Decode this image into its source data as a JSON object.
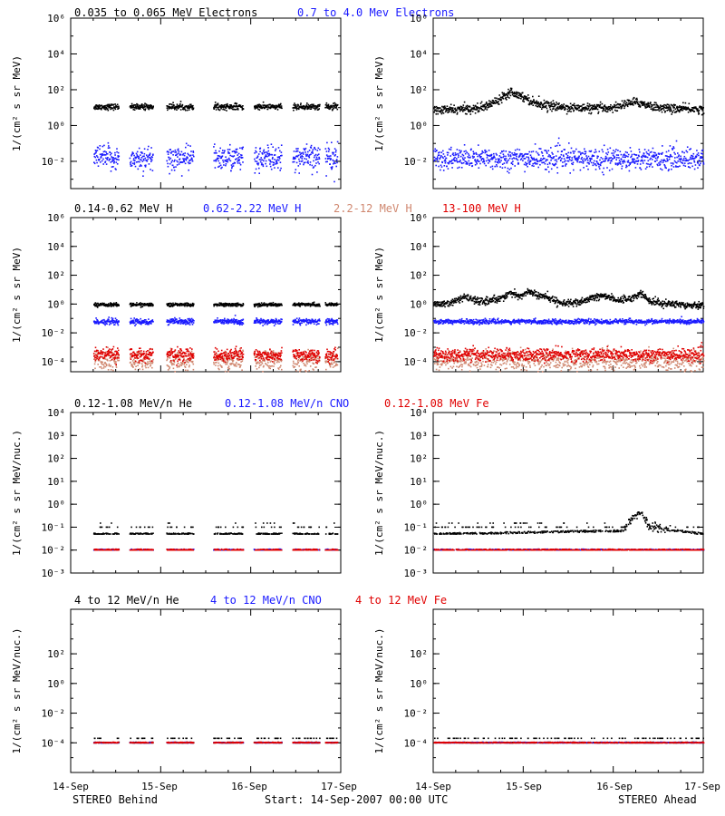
{
  "footer": {
    "left": "STEREO Behind",
    "center": "Start: 14-Sep-2007 00:00 UTC",
    "right": "STEREO Ahead"
  },
  "x_ticks": [
    "14-Sep",
    "15-Sep",
    "16-Sep",
    "17-Sep"
  ],
  "row_titles": [
    [
      {
        "text": "0.035 to 0.065 MeV Electrons",
        "color": "#000000"
      },
      {
        "text": "0.7 to 4.0 Mev Electrons",
        "color": "#1a1aff"
      }
    ],
    [
      {
        "text": "0.14-0.62 MeV H",
        "color": "#000000"
      },
      {
        "text": "0.62-2.22 MeV H",
        "color": "#1a1aff"
      },
      {
        "text": "2.2-12 MeV H",
        "color": "#d08870"
      },
      {
        "text": "13-100 MeV H",
        "color": "#e00000"
      }
    ],
    [
      {
        "text": "0.12-1.08 MeV/n He",
        "color": "#000000"
      },
      {
        "text": "0.12-1.08 MeV/n CNO",
        "color": "#1a1aff"
      },
      {
        "text": "0.12-1.08 MeV Fe",
        "color": "#e00000"
      }
    ],
    [
      {
        "text": "4 to 12 MeV/n He",
        "color": "#000000"
      },
      {
        "text": "4 to 12 MeV/n CNO",
        "color": "#1a1aff"
      },
      {
        "text": "4 to 12 MeV Fe",
        "color": "#e00000"
      }
    ]
  ],
  "chart_data": [
    {
      "type": "scatter",
      "spacecraft": "STEREO Behind",
      "ylabel": "1/(cm² s sr MeV)",
      "y_scale": "log",
      "ylim": [
        0.0003,
        1000000
      ],
      "xlim": [
        "14-Sep",
        "17-Sep"
      ],
      "y_tick_labels": [
        "10⁶",
        "10⁴",
        "10²",
        "10⁰",
        "10⁻²"
      ],
      "y_tick_exponents": [
        6,
        4,
        2,
        0,
        -2
      ],
      "data_gaps": [
        [
          0.0,
          0.25
        ],
        [
          0.53,
          0.65
        ],
        [
          0.91,
          1.06
        ],
        [
          1.36,
          1.58
        ],
        [
          1.91,
          2.03
        ],
        [
          2.34,
          2.46
        ],
        [
          2.76,
          2.82
        ],
        [
          2.96,
          3.0
        ]
      ],
      "series": [
        {
          "name": "0.035 to 0.065 MeV Electrons",
          "color": "#000000",
          "x": [
            0.25,
            2.96
          ],
          "y": [
            11,
            11
          ],
          "scatter_decades": 0.08
        },
        {
          "name": "0.7 to 4.0 Mev Electrons",
          "color": "#1a1aff",
          "x": [
            0.25,
            2.96
          ],
          "y": [
            0.015,
            0.015
          ],
          "scatter_decades": 0.35
        }
      ]
    },
    {
      "type": "scatter",
      "spacecraft": "STEREO Ahead",
      "ylabel": "1/(cm² s sr MeV)",
      "y_scale": "log",
      "ylim": [
        0.0003,
        1000000
      ],
      "xlim": [
        "14-Sep",
        "17-Sep"
      ],
      "y_tick_labels": [
        "10⁶",
        "10⁴",
        "10²",
        "10⁰",
        "10⁻²"
      ],
      "y_tick_exponents": [
        6,
        4,
        2,
        0,
        -2
      ],
      "data_gaps": [],
      "series": [
        {
          "name": "0.035 to 0.065 MeV Electrons",
          "color": "#000000",
          "x": [
            0.0,
            0.3,
            0.55,
            0.7,
            0.85,
            1.0,
            1.1,
            1.3,
            1.5,
            1.8,
            2.0,
            2.2,
            2.3,
            2.45,
            2.6,
            3.0
          ],
          "y": [
            7,
            8,
            10,
            25,
            80,
            40,
            20,
            12,
            10,
            9,
            10,
            20,
            18,
            11,
            9,
            8
          ],
          "scatter_decades": 0.12
        },
        {
          "name": "0.7 to 4.0 Mev Electrons",
          "color": "#1a1aff",
          "x": [
            0.0,
            3.0
          ],
          "y": [
            0.014,
            0.014
          ],
          "scatter_decades": 0.3
        }
      ]
    },
    {
      "type": "scatter",
      "spacecraft": "STEREO Behind",
      "ylabel": "1/(cm² s sr MeV)",
      "y_scale": "log",
      "ylim": [
        2e-05,
        1000000
      ],
      "xlim": [
        "14-Sep",
        "17-Sep"
      ],
      "y_tick_labels": [
        "10⁶",
        "10⁴",
        "10²",
        "10⁰",
        "10⁻²",
        "10⁻⁴"
      ],
      "y_tick_exponents": [
        6,
        4,
        2,
        0,
        -2,
        -4
      ],
      "data_gaps": [
        [
          0.0,
          0.25
        ],
        [
          0.53,
          0.65
        ],
        [
          0.91,
          1.06
        ],
        [
          1.36,
          1.58
        ],
        [
          1.91,
          2.03
        ],
        [
          2.34,
          2.46
        ],
        [
          2.76,
          2.82
        ],
        [
          2.96,
          3.0
        ]
      ],
      "series": [
        {
          "name": "0.14-0.62 MeV H",
          "color": "#000000",
          "x": [
            0.25,
            2.96
          ],
          "y": [
            0.9,
            0.9
          ],
          "scatter_decades": 0.06
        },
        {
          "name": "0.62-2.22 MeV H",
          "color": "#1a1aff",
          "x": [
            0.25,
            2.96
          ],
          "y": [
            0.06,
            0.06
          ],
          "scatter_decades": 0.1
        },
        {
          "name": "2.2-12 MeV H",
          "color": "#d08870",
          "x": [
            0.25,
            2.96
          ],
          "y": [
            0.00012,
            0.00012
          ],
          "scatter_decades": 0.35
        },
        {
          "name": "13-100 MeV H",
          "color": "#e00000",
          "x": [
            0.25,
            2.96
          ],
          "y": [
            0.0003,
            0.0003
          ],
          "scatter_decades": 0.22
        }
      ]
    },
    {
      "type": "scatter",
      "spacecraft": "STEREO Ahead",
      "ylabel": "1/(cm² s sr MeV)",
      "y_scale": "log",
      "ylim": [
        2e-05,
        1000000
      ],
      "xlim": [
        "14-Sep",
        "17-Sep"
      ],
      "y_tick_labels": [
        "10⁶",
        "10⁴",
        "10²",
        "10⁰",
        "10⁻²",
        "10⁻⁴"
      ],
      "y_tick_exponents": [
        6,
        4,
        2,
        0,
        -2,
        -4
      ],
      "data_gaps": [],
      "series": [
        {
          "name": "0.14-0.62 MeV H",
          "color": "#000000",
          "x": [
            0.0,
            0.2,
            0.35,
            0.5,
            0.7,
            0.85,
            0.95,
            1.05,
            1.15,
            1.25,
            1.4,
            1.6,
            1.75,
            1.9,
            2.05,
            2.2,
            2.3,
            2.4,
            2.55,
            2.8,
            3.0
          ],
          "y": [
            0.9,
            1.2,
            3,
            1.5,
            2,
            6,
            3,
            8,
            4,
            3,
            1.3,
            1.1,
            2.5,
            4,
            1.8,
            2.5,
            6,
            1.5,
            1.1,
            0.9,
            0.8
          ],
          "scatter_decades": 0.12
        },
        {
          "name": "0.62-2.22 MeV H",
          "color": "#1a1aff",
          "x": [
            0.0,
            3.0
          ],
          "y": [
            0.06,
            0.06
          ],
          "scatter_decades": 0.08
        },
        {
          "name": "2.2-12 MeV H",
          "color": "#d08870",
          "x": [
            0.0,
            3.0
          ],
          "y": [
            0.00012,
            0.00012
          ],
          "scatter_decades": 0.35
        },
        {
          "name": "13-100 MeV H",
          "color": "#e00000",
          "x": [
            0.0,
            3.0
          ],
          "y": [
            0.0003,
            0.0003
          ],
          "scatter_decades": 0.22
        }
      ]
    },
    {
      "type": "scatter",
      "spacecraft": "STEREO Behind",
      "ylabel": "1/(cm² s sr MeV/nuc.)",
      "y_scale": "log",
      "ylim": [
        0.001,
        10000
      ],
      "xlim": [
        "14-Sep",
        "17-Sep"
      ],
      "y_tick_labels": [
        "10⁴",
        "10³",
        "10²",
        "10¹",
        "10⁰",
        "10⁻¹",
        "10⁻²",
        "10⁻³"
      ],
      "y_tick_exponents": [
        4,
        3,
        2,
        1,
        0,
        -1,
        -2,
        -3
      ],
      "data_gaps": [
        [
          0.0,
          0.25
        ],
        [
          0.53,
          0.65
        ],
        [
          0.91,
          1.06
        ],
        [
          1.36,
          1.58
        ],
        [
          1.91,
          2.03
        ],
        [
          2.34,
          2.46
        ],
        [
          2.76,
          2.82
        ],
        [
          2.96,
          3.0
        ]
      ],
      "series": [
        {
          "name": "0.12-1.08 MeV/n He",
          "color": "#000000",
          "x": [
            0.25,
            2.96
          ],
          "y": [
            0.05,
            0.05
          ],
          "quantized_levels": [
            0.05,
            0.1,
            0.15
          ]
        },
        {
          "name": "0.12-1.08 MeV/n CNO",
          "color": "#1a1aff",
          "x": [
            0.25,
            2.96
          ],
          "y": [
            0.01,
            0.01
          ],
          "quantized_levels": [
            0.01
          ]
        },
        {
          "name": "0.12-1.08 MeV Fe",
          "color": "#e00000",
          "x": [
            0.25,
            2.96
          ],
          "y": [
            0.01,
            0.01
          ],
          "quantized_levels": [
            0.01
          ]
        }
      ]
    },
    {
      "type": "scatter",
      "spacecraft": "STEREO Ahead",
      "ylabel": "1/(cm² s sr MeV/nuc.)",
      "y_scale": "log",
      "ylim": [
        0.001,
        10000
      ],
      "xlim": [
        "14-Sep",
        "17-Sep"
      ],
      "y_tick_labels": [
        "10⁴",
        "10³",
        "10²",
        "10¹",
        "10⁰",
        "10⁻¹",
        "10⁻²",
        "10⁻³"
      ],
      "y_tick_exponents": [
        4,
        3,
        2,
        1,
        0,
        -1,
        -2,
        -3
      ],
      "data_gaps": [],
      "series": [
        {
          "name": "0.12-1.08 MeV/n He",
          "color": "#000000",
          "x": [
            0.0,
            2.1,
            2.2,
            2.3,
            2.4,
            3.0
          ],
          "y": [
            0.05,
            0.07,
            0.25,
            0.5,
            0.1,
            0.05
          ],
          "quantized_levels": [
            0.05,
            0.1,
            0.15
          ]
        },
        {
          "name": "0.12-1.08 MeV/n CNO",
          "color": "#1a1aff",
          "x": [
            0.0,
            3.0
          ],
          "y": [
            0.01,
            0.01
          ],
          "quantized_levels": [
            0.01
          ]
        },
        {
          "name": "0.12-1.08 MeV Fe",
          "color": "#e00000",
          "x": [
            0.0,
            3.0
          ],
          "y": [
            0.01,
            0.01
          ],
          "quantized_levels": [
            0.01
          ]
        }
      ]
    },
    {
      "type": "scatter",
      "spacecraft": "STEREO Behind",
      "ylabel": "1/(cm² s sr MeV/nuc.)",
      "y_scale": "log",
      "ylim": [
        1e-06,
        100000
      ],
      "xlim": [
        "14-Sep",
        "17-Sep"
      ],
      "y_tick_labels": [
        "10²",
        "10⁰",
        "10⁻²",
        "10⁻⁴"
      ],
      "y_tick_exponents": [
        2,
        0,
        -2,
        -4
      ],
      "data_gaps": [
        [
          0.0,
          0.25
        ],
        [
          0.53,
          0.65
        ],
        [
          0.91,
          1.06
        ],
        [
          1.36,
          1.58
        ],
        [
          1.91,
          2.03
        ],
        [
          2.34,
          2.46
        ],
        [
          2.76,
          2.82
        ],
        [
          2.96,
          3.0
        ]
      ],
      "series": [
        {
          "name": "4 to 12 MeV/n He",
          "color": "#000000",
          "x": [
            0.25,
            2.96
          ],
          "y": [
            0.0001,
            0.0001
          ],
          "quantized_levels": [
            0.0001,
            0.0002
          ]
        },
        {
          "name": "4 to 12 MeV/n CNO",
          "color": "#1a1aff",
          "x": [
            0.25,
            2.96
          ],
          "y": [
            0.0001,
            0.0001
          ],
          "quantized_levels": [
            0.0001
          ]
        },
        {
          "name": "4 to 12 MeV Fe",
          "color": "#e00000",
          "x": [
            0.25,
            2.96
          ],
          "y": [
            0.0001,
            0.0001
          ],
          "quantized_levels": [
            0.0001
          ]
        }
      ]
    },
    {
      "type": "scatter",
      "spacecraft": "STEREO Ahead",
      "ylabel": "1/(cm² s sr MeV/nuc.)",
      "y_scale": "log",
      "ylim": [
        1e-06,
        100000
      ],
      "xlim": [
        "14-Sep",
        "17-Sep"
      ],
      "y_tick_labels": [
        "10²",
        "10⁰",
        "10⁻²",
        "10⁻⁴"
      ],
      "y_tick_exponents": [
        2,
        0,
        -2,
        -4
      ],
      "data_gaps": [],
      "series": [
        {
          "name": "4 to 12 MeV/n He",
          "color": "#000000",
          "x": [
            0.0,
            3.0
          ],
          "y": [
            0.0001,
            0.0001
          ],
          "quantized_levels": [
            0.0001,
            0.0002
          ]
        },
        {
          "name": "4 to 12 MeV/n CNO",
          "color": "#1a1aff",
          "x": [
            0.0,
            3.0
          ],
          "y": [
            0.0001,
            0.0001
          ],
          "quantized_levels": [
            0.0001
          ]
        },
        {
          "name": "4 to 12 MeV Fe",
          "color": "#e00000",
          "x": [
            0.0,
            3.0
          ],
          "y": [
            0.0001,
            0.0001
          ],
          "quantized_levels": [
            0.0001
          ]
        }
      ]
    }
  ]
}
